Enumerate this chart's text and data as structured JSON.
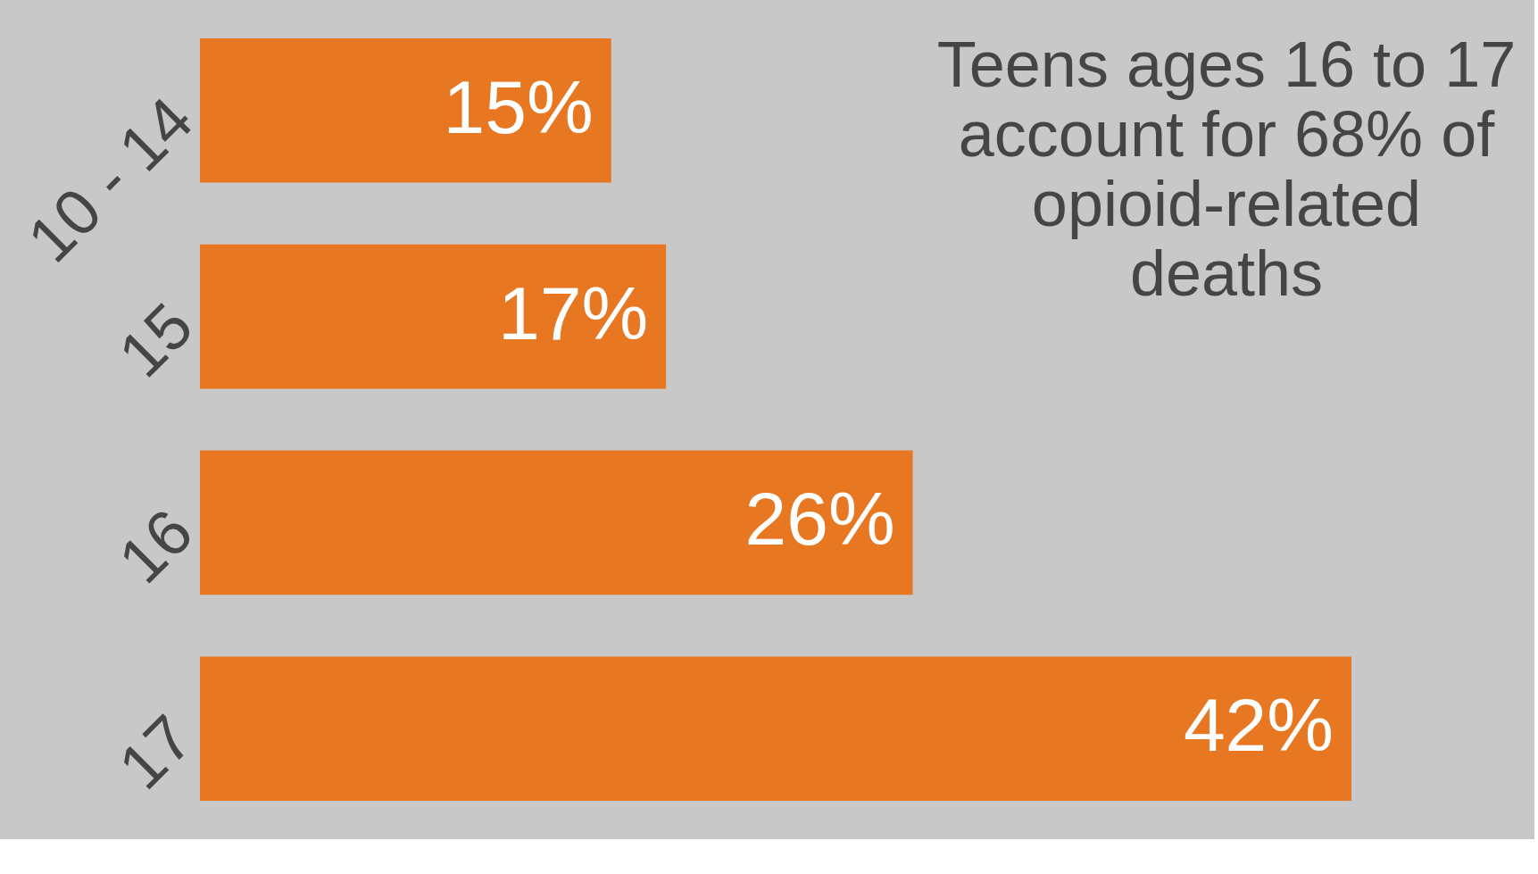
{
  "chart_data": {
    "type": "bar",
    "orientation": "horizontal",
    "categories": [
      "10 - 14",
      "15",
      "16",
      "17"
    ],
    "values": [
      15,
      17,
      26,
      42
    ],
    "color": "#e87722",
    "value_labels": [
      "15%",
      "17%",
      "26%",
      "42%"
    ],
    "annotations": [
      "Teens ages 16 to 17 account for 68% of opioid-related deaths"
    ]
  }
}
